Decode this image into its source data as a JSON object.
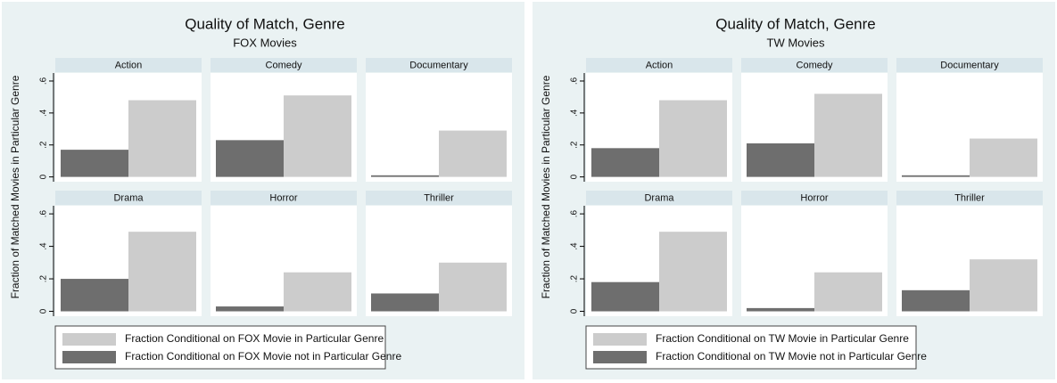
{
  "chart_data": [
    {
      "type": "bar",
      "title": "Quality of Match, Genre",
      "subtitle": "FOX Movies",
      "y_label": "Fraction of Matched Movies in Particular Genre",
      "categories": [
        "Action",
        "Comedy",
        "Documentary",
        "Drama",
        "Horror",
        "Thriller"
      ],
      "series": [
        {
          "name": "Fraction Conditional on FOX Movie not in Particular Genre",
          "color": "#6e6e6e",
          "values": [
            0.17,
            0.23,
            0.01,
            0.2,
            0.03,
            0.11
          ]
        },
        {
          "name": "Fraction Conditional on FOX Movie in Particular Genre",
          "color": "#cccccc",
          "values": [
            0.48,
            0.51,
            0.29,
            0.49,
            0.24,
            0.3
          ]
        }
      ],
      "ylim": [
        -0.03,
        0.65
      ],
      "yticks": [
        0,
        {
          "value": 0.2,
          "label": ".2"
        },
        {
          "value": 0.4,
          "label": ".4"
        },
        {
          "value": 0.6,
          "label": ".6"
        }
      ]
    },
    {
      "type": "bar",
      "title": "Quality of Match, Genre",
      "subtitle": "TW Movies",
      "y_label": "Fraction of Matched Movies in Particular Genre",
      "categories": [
        "Action",
        "Comedy",
        "Documentary",
        "Drama",
        "Horror",
        "Thriller"
      ],
      "series": [
        {
          "name": "Fraction Conditional on TW Movie not in Particular Genre",
          "color": "#6e6e6e",
          "values": [
            0.18,
            0.21,
            0.01,
            0.18,
            0.02,
            0.13
          ]
        },
        {
          "name": "Fraction Conditional on TW Movie in Particular Genre",
          "color": "#cccccc",
          "values": [
            0.48,
            0.52,
            0.24,
            0.49,
            0.24,
            0.32
          ]
        }
      ],
      "ylim": [
        -0.03,
        0.65
      ],
      "yticks": [
        0,
        {
          "value": 0.2,
          "label": ".2"
        },
        {
          "value": 0.4,
          "label": ".4"
        },
        {
          "value": 0.6,
          "label": ".6"
        }
      ]
    }
  ]
}
